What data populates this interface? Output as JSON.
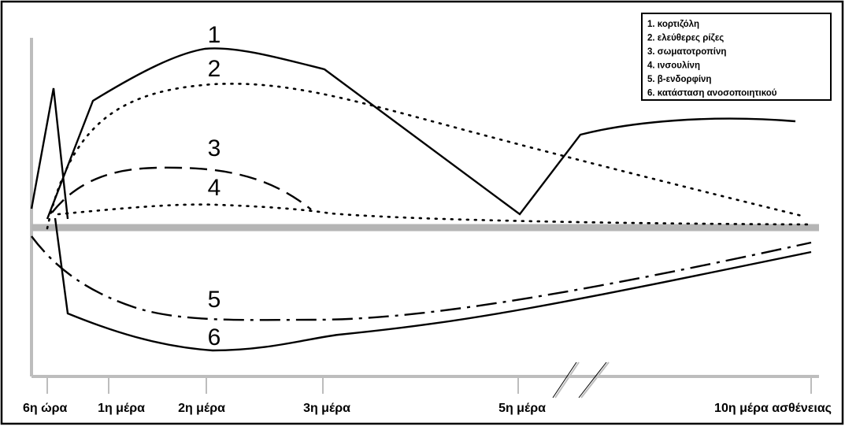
{
  "colors": {
    "line": "#000000",
    "baseline": "#b5b5b5",
    "axis": "#bdbdbd",
    "background": "#ffffff"
  },
  "legend": {
    "placement": "top-right",
    "items": [
      "1. κορτιζόλη",
      "2. ελεύθερες ρίζες",
      "3. σωματοτροπίνη",
      "4. ινσουλίνη",
      "5. β-ενδορφίνη",
      "6. κατάσταση ανοσοποιητικού"
    ]
  },
  "chart_data": {
    "type": "line",
    "title": "",
    "xlabel": "",
    "ylabel": "",
    "grid": false,
    "x_ticks": [
      "6η ώρα",
      "1η μέρα",
      "2η μέρα",
      "3η μέρα",
      "5η μέρα",
      "10η μέρα ασθένειας"
    ],
    "axis_break": "between 5η μέρα and 10η μέρα ασθένειας",
    "baseline": "horizontal reference line near mid-height",
    "series": [
      {
        "label": "1",
        "name": "1. κορτιζόλη",
        "style": "solid"
      },
      {
        "label": "2",
        "name": "2. ελεύθερες ρίζες",
        "style": "dotted"
      },
      {
        "label": "3",
        "name": "3. σωματοτροπίνη",
        "style": "long-dash"
      },
      {
        "label": "4",
        "name": "4. ινσουλίνη",
        "style": "dotted"
      },
      {
        "label": "5",
        "name": "5. β-ενδορφίνη",
        "style": "dash-dot"
      },
      {
        "label": "6",
        "name": "6. κατάσταση ανοσοποιητικού",
        "style": "solid"
      }
    ]
  }
}
